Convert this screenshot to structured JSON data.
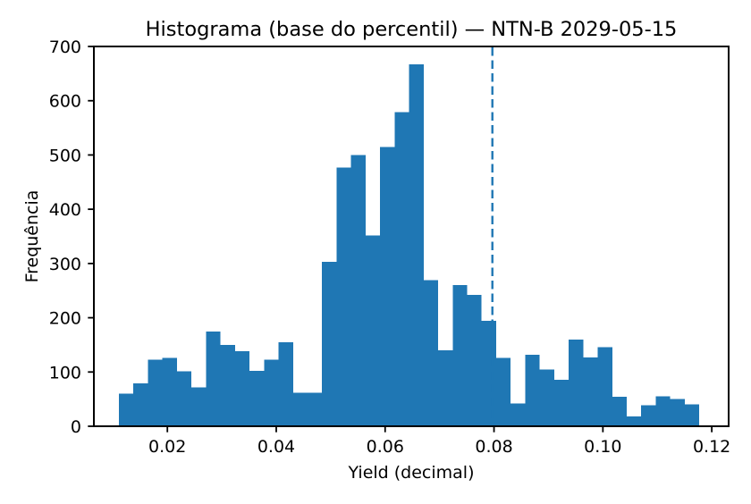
{
  "figure": {
    "title": "Histograma (base do percentil) — NTN-B 2029-05-15",
    "xlabel": "Yield (decimal)",
    "ylabel": "Frequência"
  },
  "chart_data": {
    "type": "bar",
    "subtype": "histogram",
    "title": "Histograma (base do percentil) — NTN-B 2029-05-15",
    "xlabel": "Yield (decimal)",
    "ylabel": "Frequência",
    "bin_start": 0.0111,
    "bin_width": 0.002665,
    "values": [
      60,
      79,
      123,
      126,
      101,
      72,
      175,
      150,
      138,
      102,
      123,
      155,
      62,
      62,
      303,
      477,
      500,
      352,
      515,
      579,
      667,
      269,
      140,
      260,
      242,
      194,
      126,
      42,
      132,
      105,
      86,
      160,
      127,
      146,
      54,
      18,
      39,
      55,
      50,
      40
    ],
    "xlim": [
      0.0065,
      0.1231
    ],
    "ylim": [
      0,
      700
    ],
    "xticks": [
      0.02,
      0.04,
      0.06,
      0.08,
      0.1,
      0.12
    ],
    "xtick_labels": [
      "0.02",
      "0.04",
      "0.06",
      "0.08",
      "0.10",
      "0.12"
    ],
    "yticks": [
      0,
      100,
      200,
      300,
      400,
      500,
      600,
      700
    ],
    "ytick_labels": [
      "0",
      "100",
      "200",
      "300",
      "400",
      "500",
      "600",
      "700"
    ],
    "grid": false,
    "bar_color": "#1f77b4",
    "axis_color": "#000000",
    "percentile_line": {
      "x": 0.0797,
      "style": "dashed",
      "color": "#1f77b4",
      "orientation": "vertical"
    }
  }
}
